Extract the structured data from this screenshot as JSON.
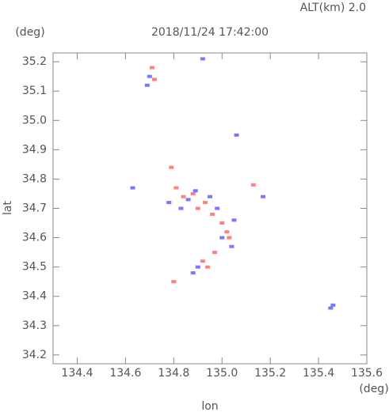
{
  "chart_data": {
    "type": "scatter",
    "title": "2018/11/24 17:42:00",
    "subtitle": "ALT(km) 2.0",
    "x_label": "lon",
    "y_label": "lat",
    "x_unit": "(deg)",
    "y_unit": "(deg)",
    "xlim": [
      134.3,
      135.6
    ],
    "ylim": [
      34.17,
      35.23
    ],
    "xticks": [
      134.4,
      134.6,
      134.8,
      {
        "value": 135,
        "label": "135.0"
      },
      135.2,
      135.4,
      135.6
    ],
    "yticks": [
      34.2,
      34.3,
      34.4,
      34.5,
      34.6,
      34.7,
      34.8,
      34.9,
      {
        "value": 35,
        "label": "35.0"
      },
      35.1,
      35.2
    ],
    "series": [
      {
        "color": "#ff8080",
        "x": [
          134.71,
          134.72,
          134.79,
          134.81,
          134.84,
          134.88,
          134.9,
          134.93,
          134.96,
          135.0,
          135.02,
          135.03,
          134.92,
          134.94,
          134.97,
          134.8,
          135.13
        ],
        "y": [
          35.18,
          35.14,
          34.84,
          34.77,
          34.74,
          34.75,
          34.7,
          34.72,
          34.68,
          34.65,
          34.62,
          34.6,
          34.52,
          34.5,
          34.55,
          34.45,
          34.78
        ]
      },
      {
        "color": "#7878ff",
        "x": [
          134.7,
          134.69,
          134.63,
          134.78,
          134.83,
          134.86,
          134.89,
          134.95,
          134.98,
          135.05,
          135.04,
          135.0,
          134.9,
          134.88,
          135.06,
          135.17,
          135.46,
          135.45,
          134.92
        ],
        "y": [
          35.15,
          35.12,
          34.77,
          34.72,
          34.7,
          34.73,
          34.76,
          34.74,
          34.7,
          34.66,
          34.57,
          34.6,
          34.5,
          34.48,
          34.95,
          34.74,
          34.37,
          34.36,
          35.21
        ]
      }
    ]
  }
}
